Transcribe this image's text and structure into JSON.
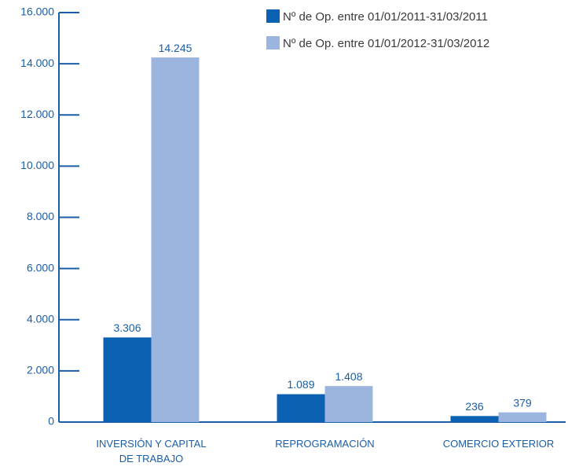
{
  "chart_data": {
    "type": "bar",
    "categories": [
      "INVERSIÓN Y CAPITAL DE TRABAJO",
      "REPROGRAMACIÓN",
      "COMERCIO EXTERIOR"
    ],
    "series": [
      {
        "name": "Nº de Op. entre 01/01/2011-31/03/2011",
        "color": "#0b62b3",
        "values": [
          3306,
          1089,
          236
        ],
        "value_labels": [
          "3.306",
          "1.089",
          "236"
        ]
      },
      {
        "name": "Nº de Op. entre 01/01/2012-31/03/2012",
        "color": "#9cb5de",
        "values": [
          14245,
          1408,
          379
        ],
        "value_labels": [
          "14.245",
          "1.408",
          "379"
        ]
      }
    ],
    "ylim": [
      0,
      16000
    ],
    "yticks": [
      0,
      {
        "value": 2000,
        "label": "2.000"
      },
      {
        "value": 4000,
        "label": "4.000"
      },
      {
        "value": 6000,
        "label": "6.000"
      },
      {
        "value": 8000,
        "label": "8.000"
      },
      {
        "value": 10000,
        "label": "10.000"
      },
      {
        "value": 12000,
        "label": "12.000"
      },
      {
        "value": 14000,
        "label": "14.000"
      },
      {
        "value": 16000,
        "label": "16.000"
      }
    ],
    "legend": "top-right"
  }
}
